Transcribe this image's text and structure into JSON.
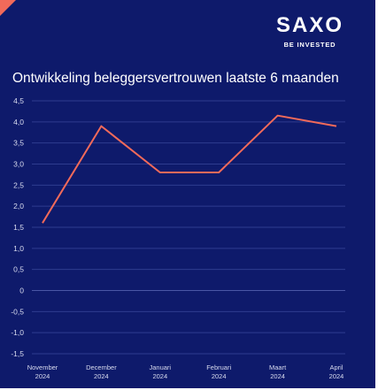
{
  "brand": {
    "name": "SAXO",
    "tagline": "BE INVESTED",
    "accent_color": "#f26a5a",
    "background_color": "#0e1a6b"
  },
  "chart_data": {
    "type": "line",
    "title": "Ontwikkeling beleggersvertrouwen laatste 6 maanden",
    "categories": [
      [
        "November",
        "2024"
      ],
      [
        "December",
        "2024"
      ],
      [
        "Januari",
        "2024"
      ],
      [
        "Februari",
        "2024"
      ],
      [
        "Maart",
        "2024"
      ],
      [
        "April",
        "2024"
      ]
    ],
    "series": [
      {
        "values": [
          1.6,
          3.9,
          2.8,
          2.8,
          4.15,
          3.9
        ],
        "color": "#f26a5a"
      }
    ],
    "ylim": [
      -1.5,
      4.5
    ],
    "yticks": [
      "4,5",
      "4,0",
      "3,5",
      "3,0",
      "2,5",
      "2,0",
      "1,5",
      "1,0",
      "0,5",
      "0",
      "-0,5",
      "-1,0",
      "-1,5"
    ],
    "grid": true,
    "legend": "none"
  }
}
